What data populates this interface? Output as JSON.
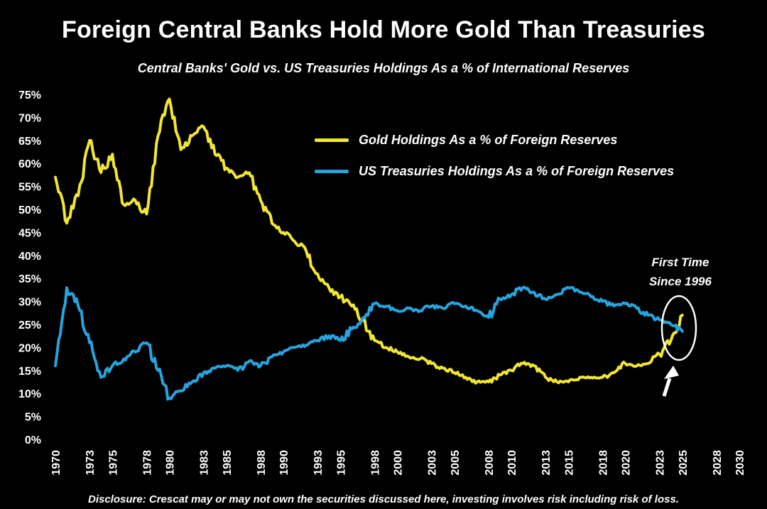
{
  "title": "Foreign Central Banks Hold More Gold Than Treasuries",
  "subtitle": "Central Banks' Gold vs. US Treasuries Holdings As a % of International Reserves",
  "disclosure": "Disclosure: Crescat may or may not own the securities discussed here, investing involves risk including risk of loss.",
  "colors": {
    "background": "#000000",
    "text": "#ffffff",
    "gold": "#f2e634",
    "treasuries": "#27a4dd"
  },
  "chart_data": {
    "type": "line",
    "title": "Foreign Central Banks Hold More Gold Than Treasuries",
    "subtitle": "Central Banks' Gold vs. US Treasuries Holdings As a % of International Reserves",
    "xlabel": "",
    "ylabel": "",
    "xlim": [
      1969,
      2031
    ],
    "ylim": [
      0,
      75
    ],
    "grid": false,
    "legend_position": "inside-top-center",
    "y_ticks": [
      "75%",
      "70%",
      "65%",
      "60%",
      "55%",
      "50%",
      "45%",
      "40%",
      "35%",
      "30%",
      "25%",
      "20%",
      "15%",
      "10%",
      "5%",
      "0%"
    ],
    "x_ticks": [
      "1970",
      "1973",
      "1975",
      "1978",
      "1980",
      "1983",
      "1985",
      "1988",
      "1990",
      "1993",
      "1995",
      "1998",
      "2000",
      "2003",
      "2005",
      "2008",
      "2010",
      "2013",
      "2015",
      "2018",
      "2020",
      "2023",
      "2025",
      "2028",
      "2030"
    ],
    "years": [
      1970,
      1971,
      1972,
      1973,
      1974,
      1975,
      1976,
      1977,
      1978,
      1979,
      1980,
      1981,
      1982,
      1983,
      1984,
      1985,
      1986,
      1987,
      1988,
      1989,
      1990,
      1991,
      1992,
      1993,
      1994,
      1995,
      1996,
      1997,
      1998,
      1999,
      2000,
      2001,
      2002,
      2003,
      2004,
      2005,
      2006,
      2007,
      2008,
      2009,
      2010,
      2011,
      2012,
      2013,
      2014,
      2015,
      2016,
      2017,
      2018,
      2019,
      2020,
      2021,
      2022,
      2023,
      2024,
      2025
    ],
    "series": [
      {
        "name": "Gold Holdings As a % of Foreign Reserves",
        "color": "#f2e634",
        "values": [
          57,
          47,
          53,
          65,
          58,
          62,
          51,
          52,
          49,
          66,
          74,
          63,
          66,
          68,
          62,
          59,
          57,
          58,
          52,
          47,
          45,
          43,
          41,
          36,
          33,
          31,
          29,
          26,
          21.5,
          20,
          19,
          18,
          17.5,
          16.5,
          15.5,
          14.5,
          13.5,
          12.5,
          12.5,
          14,
          15,
          16.5,
          16,
          13.5,
          12.5,
          12.5,
          13.5,
          13.5,
          13.5,
          14.5,
          16.5,
          16,
          16.5,
          18.5,
          21.5,
          27
        ]
      },
      {
        "name": "US Treasuries Holdings As a % of Foreign Reserves",
        "color": "#27a4dd",
        "values": [
          16,
          33,
          29,
          21,
          13.5,
          16,
          17.5,
          19,
          21,
          15,
          9,
          10.5,
          12.5,
          14.5,
          15.5,
          16,
          15,
          17,
          16,
          18,
          19,
          20,
          20.5,
          21.5,
          22.5,
          21.5,
          24,
          26.5,
          29.5,
          29,
          28,
          28.5,
          28,
          29,
          28.5,
          29.5,
          29,
          28,
          26.5,
          30.5,
          31.5,
          33,
          32,
          30.5,
          31.5,
          33,
          32,
          31,
          30,
          29,
          29.5,
          28.5,
          27,
          26,
          25,
          23.5
        ]
      }
    ],
    "annotation": {
      "line1": "First Time",
      "line2": "Since 1996",
      "x": 2024.6,
      "y": 25
    }
  }
}
